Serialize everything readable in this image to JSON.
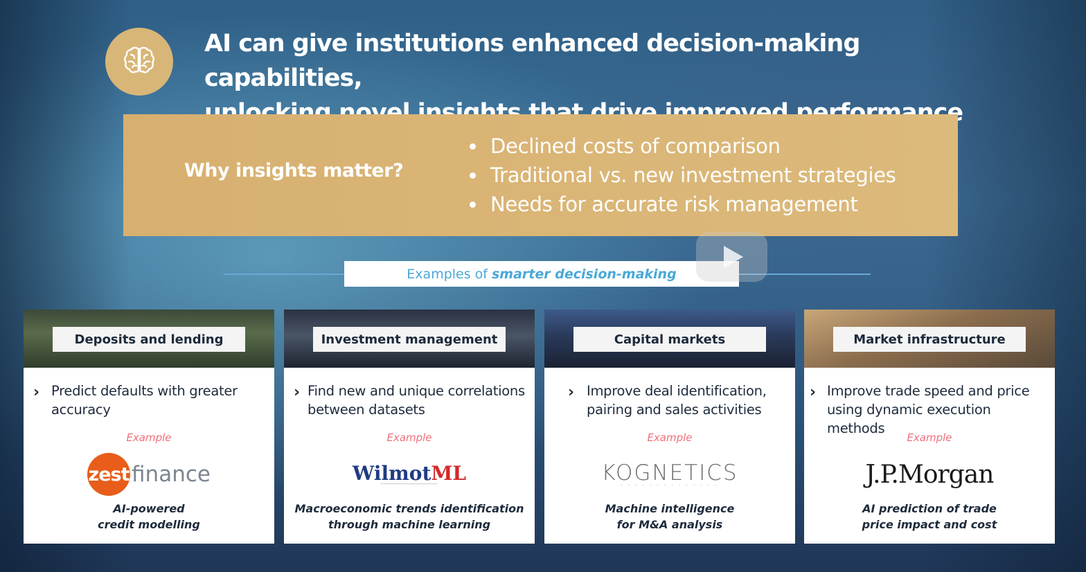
{
  "headline": {
    "line1": "AI can give institutions enhanced decision-making capabilities,",
    "line2": "unlocking novel insights that drive improved performance",
    "icon": "brain-icon"
  },
  "why": {
    "title": "Why insights matter?",
    "bullets": [
      "Declined costs of comparison",
      "Traditional vs. new investment strategies",
      "Needs for accurate risk management"
    ]
  },
  "examples_header": {
    "prefix": "Examples of",
    "emphasis": "smarter decision-making"
  },
  "cards": [
    {
      "tag": "Deposits and lending",
      "text": "Predict defaults with greater accuracy",
      "example_label": "Example",
      "logo": {
        "part1": "zest",
        "part2": "finance"
      },
      "caption_line1": "AI-powered",
      "caption_line2": "credit modelling"
    },
    {
      "tag": "Investment management",
      "text": "Find new and unique correlations between datasets",
      "example_label": "Example",
      "logo": {
        "part1": "Wilmot",
        "part2": "ML"
      },
      "caption_line1": "Macroeconomic trends identification",
      "caption_line2": "through machine learning"
    },
    {
      "tag": "Capital markets",
      "text": "Improve deal identification, pairing and sales activities",
      "example_label": "Example",
      "logo": {
        "part1": "KOGNETICS"
      },
      "caption_line1": "Machine intelligence",
      "caption_line2": "for M&A analysis"
    },
    {
      "tag": "Market infrastructure",
      "text": "Improve trade speed and price using dynamic execution methods",
      "example_label": "Example",
      "logo": {
        "part1": "J.P.Morgan"
      },
      "caption_line1": "AI prediction of trade",
      "caption_line2": "price impact and cost"
    }
  ],
  "colors": {
    "gold": "#d9b674",
    "accent_blue": "#4aa8d8",
    "example_red": "#ef6f7a",
    "zest_orange": "#e85d1a"
  }
}
